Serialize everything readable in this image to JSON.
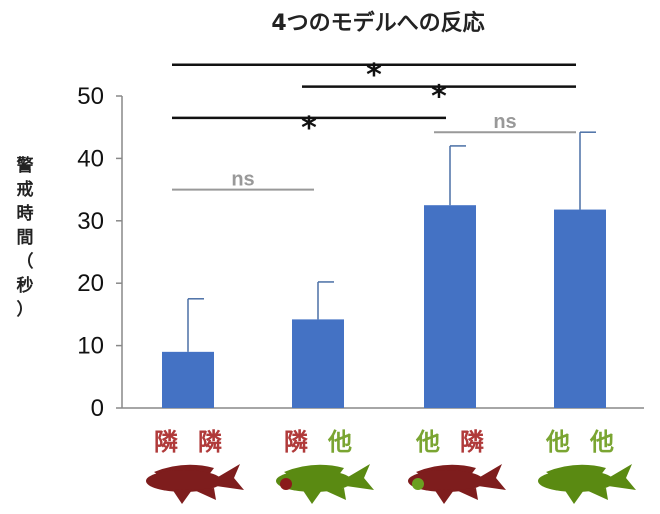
{
  "chart_data": {
    "type": "bar",
    "title": "4つのモデルへの反応",
    "ylabel": [
      "警",
      "戒",
      "時",
      "間",
      "（",
      "秒",
      "）"
    ],
    "ylim": [
      0,
      50
    ],
    "yticks": [
      "0",
      "10",
      "20",
      "30",
      "40",
      "50"
    ],
    "categories": [
      {
        "left": "隣",
        "right": "隣",
        "left_color": "#b03a3a",
        "right_color": "#b03a3a",
        "body": "#7e1d1d",
        "spot": ""
      },
      {
        "left": "隣",
        "right": "他",
        "left_color": "#b03a3a",
        "right_color": "#7aa532",
        "body": "#5a8a12",
        "spot": "#8a1a1a"
      },
      {
        "left": "他",
        "right": "隣",
        "left_color": "#7aa532",
        "right_color": "#b03a3a",
        "body": "#7e1d1d",
        "spot": "#6a9f20"
      },
      {
        "left": "他",
        "right": "他",
        "left_color": "#7aa532",
        "right_color": "#7aa532",
        "body": "#5a8a12",
        "spot": ""
      }
    ],
    "values": [
      9,
      14.2,
      32.5,
      31.8
    ],
    "errors": [
      8.5,
      6,
      9.5,
      12.4
    ],
    "bar_color": "#4472c4",
    "significance": [
      {
        "from": 0,
        "to": 3,
        "y": 55,
        "label": "*",
        "color": "#111111"
      },
      {
        "from": 1,
        "to": 3,
        "y": 51.5,
        "label": "*",
        "color": "#111111"
      },
      {
        "from": 0,
        "to": 2,
        "y": 46.5,
        "label": "*",
        "color": "#111111"
      },
      {
        "from": 2,
        "to": 3,
        "y": 44.2,
        "label": "ns",
        "color": "#999999"
      },
      {
        "from": 0,
        "to": 1,
        "y": 35,
        "label": "ns",
        "color": "#999999"
      }
    ]
  }
}
